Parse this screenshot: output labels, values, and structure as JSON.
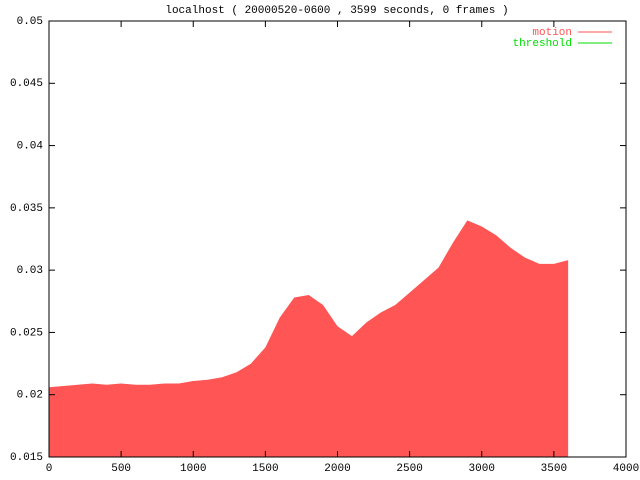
{
  "chart_data": {
    "type": "area",
    "title": "localhost ( 20000520-0600 , 3599 seconds, 0 frames )",
    "x": [
      0,
      100,
      200,
      300,
      400,
      500,
      600,
      700,
      800,
      900,
      1000,
      1100,
      1200,
      1300,
      1400,
      1500,
      1600,
      1700,
      1800,
      1900,
      2000,
      2100,
      2200,
      2300,
      2400,
      2500,
      2600,
      2700,
      2800,
      2900,
      3000,
      3100,
      3200,
      3300,
      3400,
      3500,
      3599
    ],
    "series": [
      {
        "name": "motion",
        "color": "#ff5555",
        "values": [
          0.0206,
          0.0207,
          0.0208,
          0.0209,
          0.0208,
          0.0209,
          0.0208,
          0.0208,
          0.0209,
          0.0209,
          0.0211,
          0.0212,
          0.0214,
          0.0218,
          0.0225,
          0.0238,
          0.0262,
          0.0278,
          0.028,
          0.0272,
          0.0255,
          0.0247,
          0.0258,
          0.0266,
          0.0272,
          0.0282,
          0.0292,
          0.0302,
          0.0322,
          0.034,
          0.0335,
          0.0328,
          0.0318,
          0.031,
          0.0305,
          0.0305,
          0.0308
        ]
      },
      {
        "name": "threshold",
        "color": "#00dd00",
        "values": [
          0.05,
          0.05,
          0.05,
          0.05,
          0.05,
          0.05,
          0.05,
          0.05,
          0.05,
          0.05,
          0.05,
          0.05,
          0.05,
          0.05,
          0.05,
          0.05,
          0.05,
          0.05,
          0.05,
          0.05,
          0.05,
          0.05,
          0.05,
          0.05,
          0.05,
          0.05,
          0.05,
          0.05,
          0.05,
          0.05,
          0.05,
          0.05,
          0.05,
          0.05,
          0.05,
          0.05,
          0.05
        ]
      }
    ],
    "xlim": [
      0,
      4000
    ],
    "xticks": [
      0,
      500,
      1000,
      1500,
      2000,
      2500,
      3000,
      3500,
      4000
    ],
    "ylim": [
      0.015,
      0.05
    ],
    "yticks": [
      0.015,
      0.02,
      0.025,
      0.03,
      0.035,
      0.04,
      0.045,
      0.05
    ],
    "legend": "top-right"
  }
}
